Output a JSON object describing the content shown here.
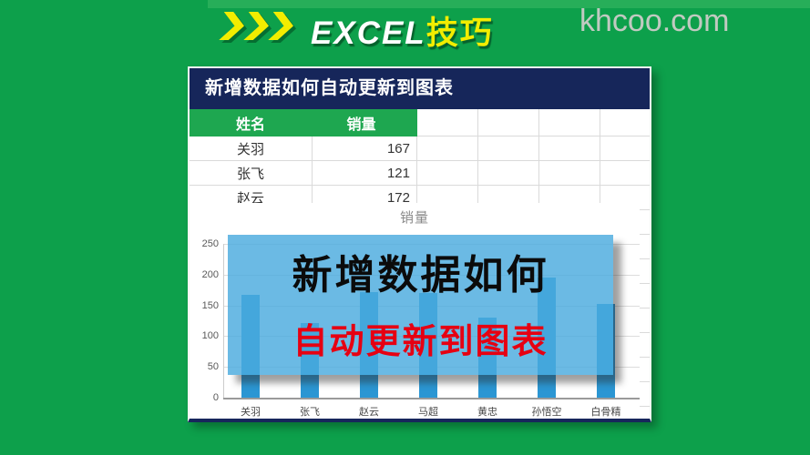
{
  "banner": {
    "brand_excel": "EXCEL",
    "brand_tip": "技巧",
    "watermark": "khcoo.com"
  },
  "panel": {
    "title": "新增数据如何自动更新到图表"
  },
  "table": {
    "headers": [
      "姓名",
      "销量"
    ],
    "rows": [
      {
        "name": "关羽",
        "value": "167"
      },
      {
        "name": "张飞",
        "value": "121"
      },
      {
        "name": "赵云",
        "value": "172"
      }
    ]
  },
  "overlay": {
    "line1": "新增数据如何",
    "line2": "自动更新到图表"
  },
  "chart_data": {
    "type": "bar",
    "title": "销量",
    "categories": [
      "关羽",
      "张飞",
      "赵云",
      "马超",
      "黄忠",
      "孙悟空",
      "白骨精"
    ],
    "values": [
      167,
      121,
      172,
      170,
      130,
      195,
      152
    ],
    "xlabel": "",
    "ylabel": "",
    "ylim": [
      0,
      250
    ],
    "yticks": [
      0,
      50,
      100,
      150,
      200,
      250
    ],
    "grid": true,
    "legend": false,
    "bar_color": "#2b96d3"
  },
  "colors": {
    "background_green": "#0da04b",
    "title_navy": "#16265a",
    "table_header_green": "#1ea750",
    "bar_blue": "#2b96d3",
    "overlay_blue": "#4aabde",
    "accent_yellow": "#f2ed00",
    "overlay_red": "#e60012",
    "watermark_gray": "#c1cac1"
  }
}
